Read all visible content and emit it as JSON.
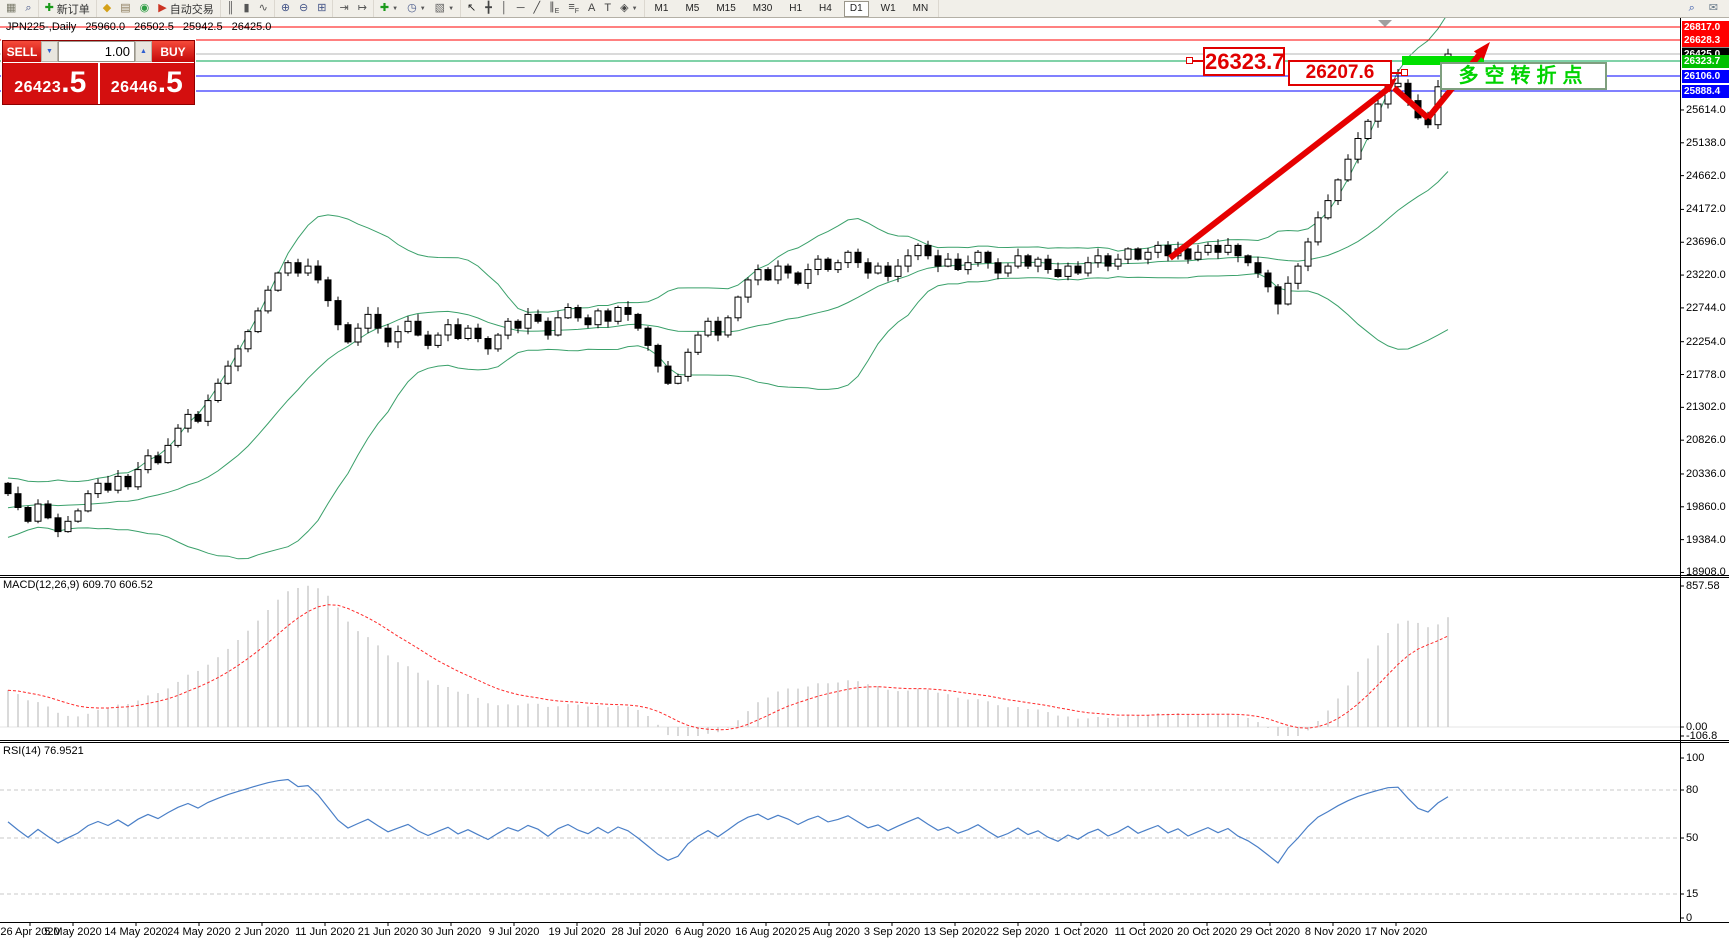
{
  "toolbar": {
    "groups": [
      {
        "items": [
          {
            "name": "chart-window-button",
            "glyph": "▦",
            "color": "#7a7a6a"
          },
          {
            "name": "zoom-preview-button",
            "glyph": "⌕",
            "color": "#445588"
          }
        ]
      },
      {
        "items": [
          {
            "name": "new-order-button",
            "glyph": "✚",
            "color": "#1a9a1a",
            "label": "新订单"
          }
        ]
      },
      {
        "items": [
          {
            "name": "metaeditor-button",
            "glyph": "◆",
            "color": "#d4a017"
          },
          {
            "name": "terminal-button",
            "glyph": "▤",
            "color": "#8a7a5a"
          },
          {
            "name": "signals-button",
            "glyph": "◉",
            "color": "#2f9e44"
          },
          {
            "name": "autotrading-button",
            "glyph": "▶",
            "color": "#cc3322",
            "label": "自动交易"
          }
        ]
      },
      {
        "items": [
          {
            "name": "bar-chart-button",
            "glyph": "║",
            "color": "#555555"
          },
          {
            "name": "candlestick-chart-button",
            "glyph": "▮",
            "color": "#555555"
          },
          {
            "name": "line-chart-button",
            "glyph": "∿",
            "color": "#555555"
          }
        ]
      },
      {
        "items": [
          {
            "name": "zoom-in-button",
            "glyph": "⊕",
            "color": "#445588"
          },
          {
            "name": "zoom-out-button",
            "glyph": "⊖",
            "color": "#445588"
          },
          {
            "name": "tile-windows-button",
            "glyph": "⊞",
            "color": "#445588"
          }
        ]
      },
      {
        "items": [
          {
            "name": "auto-scroll-button",
            "glyph": "⇥",
            "color": "#555555"
          },
          {
            "name": "chart-shift-button",
            "glyph": "↦",
            "color": "#555555"
          }
        ]
      },
      {
        "items": [
          {
            "name": "indicators-button",
            "glyph": "✚",
            "color": "#1a9a1a",
            "dropdown": true
          },
          {
            "name": "periods-button",
            "glyph": "◷",
            "color": "#445588",
            "dropdown": true
          },
          {
            "name": "templates-button",
            "glyph": "▧",
            "color": "#666666",
            "dropdown": true
          }
        ]
      },
      {
        "items": [
          {
            "name": "cursor-tool-button",
            "glyph": "↖",
            "color": "#222222"
          },
          {
            "name": "crosshair-tool-button",
            "glyph": "╋",
            "color": "#444444"
          },
          {
            "name": "vertical-line-tool-button",
            "glyph": "│",
            "color": "#444444"
          },
          {
            "name": "horizontal-line-tool-button",
            "glyph": "─",
            "color": "#444444"
          },
          {
            "name": "trendline-tool-button",
            "glyph": "╱",
            "color": "#444444"
          },
          {
            "name": "channel-tool-button",
            "glyph": "∥",
            "sub": "E",
            "color": "#444444"
          },
          {
            "name": "fibonacci-tool-button",
            "glyph": "≡",
            "sub": "F",
            "color": "#444444"
          },
          {
            "name": "text-tool-button",
            "glyph": "A",
            "color": "#444444"
          },
          {
            "name": "label-tool-button",
            "glyph": "T",
            "color": "#444444"
          },
          {
            "name": "arrows-tool-button",
            "glyph": "◈",
            "color": "#444444",
            "dropdown": true
          }
        ]
      }
    ],
    "timeframes": {
      "items": [
        "M1",
        "M5",
        "M15",
        "M30",
        "H1",
        "H4",
        "D1",
        "W1",
        "MN"
      ],
      "active": "D1"
    },
    "right_items": [
      {
        "name": "search-button",
        "glyph": "⌕",
        "color": "#3355aa"
      },
      {
        "name": "chat-button",
        "glyph": "✉",
        "color": "#667788"
      }
    ]
  },
  "chart_header": {
    "symbol": "JPN225-,Daily",
    "open": "25960.0",
    "high": "26502.5",
    "low": "25942.5",
    "close": "26425.0"
  },
  "trade_panel": {
    "sell_label": "SELL",
    "buy_label": "BUY",
    "volume": "1.00",
    "sell_price": {
      "main": "26423",
      "pips": ".5"
    },
    "buy_price": {
      "main": "26446",
      "pips": ".5"
    },
    "down_arrow": "▼",
    "up_arrow": "▲"
  },
  "annotations": {
    "resistance_label": "26323.7",
    "swing_label": "26207.6",
    "note": "多空转折点"
  },
  "panels": {
    "macd_label": "MACD(12,26,9) 609.70 606.52",
    "rsi_label": "RSI(14) 76.9521"
  },
  "axis": {
    "price_ticks": [
      "25614.0",
      "25138.0",
      "24662.0",
      "24172.0",
      "23696.0",
      "23220.0",
      "22744.0",
      "22254.0",
      "21778.0",
      "21302.0",
      "20826.0",
      "20336.0",
      "19860.0",
      "19384.0",
      "18908.0"
    ],
    "macd_ticks": [
      {
        "label": "857.58",
        "value": 857.58
      },
      {
        "label": "0.00",
        "value": 0
      },
      {
        "label": "-106.8",
        "value": -106.8
      }
    ],
    "rsi_ticks": [
      {
        "label": "100",
        "value": 100
      },
      {
        "label": "80",
        "value": 80
      },
      {
        "label": "50",
        "value": 50
      },
      {
        "label": "15",
        "value": 15
      },
      {
        "label": "0",
        "value": 0
      }
    ],
    "dates": [
      "26 Apr 2020",
      "5 May 2020",
      "14 May 2020",
      "24 May 2020",
      "2 Jun 2020",
      "11 Jun 2020",
      "21 Jun 2020",
      "30 Jun 2020",
      "9 Jul 2020",
      "19 Jul 2020",
      "28 Jul 2020",
      "6 Aug 2020",
      "16 Aug 2020",
      "25 Aug 2020",
      "3 Sep 2020",
      "13 Sep 2020",
      "22 Sep 2020",
      "1 Oct 2020",
      "11 Oct 2020",
      "20 Oct 2020",
      "29 Oct 2020",
      "8 Nov 2020",
      "17 Nov 2020"
    ]
  },
  "price_tags": [
    {
      "value": "26817.0",
      "price": 26817.0,
      "color": "#ff0000",
      "line": "#ff0000",
      "z": 3
    },
    {
      "value": "26628.3",
      "price": 26628.3,
      "color": "#ff0000",
      "line": "#ff0000",
      "z": 6
    },
    {
      "value": "26446.5",
      "price": 26446.5,
      "color": "#8a8a8a",
      "z": 4
    },
    {
      "value": "26425.0",
      "price": 26425.0,
      "color": "#000000",
      "line": "#b4b4b4",
      "z": 5
    },
    {
      "value": "26323.7",
      "price": 26323.7,
      "color": "#00c000",
      "line": "#00a651",
      "z": 7
    },
    {
      "value": "26106.0",
      "price": 26106.0,
      "color": "#0000ff",
      "line": "#0000ff",
      "z": 3
    },
    {
      "value": "25888.4",
      "price": 25888.4,
      "color": "#0000ff",
      "line": "#0000ff",
      "z": 3
    }
  ],
  "chart_data": {
    "type": "candlestick",
    "symbol": "JPN225-",
    "timeframe": "Daily",
    "title": "JPN225-,Daily 25960.0 26502.5 25942.5 26425.0",
    "price_axis_range": [
      18908.0,
      26817.0
    ],
    "grid": false,
    "warmup_closes": [
      19000,
      19200,
      18900,
      18650,
      18850,
      19100,
      19300,
      19500,
      19400,
      19600,
      19800,
      19700,
      19500,
      19700,
      19900,
      20000,
      19850,
      19950,
      20100,
      19950,
      19800,
      19900,
      20000,
      20100,
      19950,
      20200
    ],
    "closes": [
      20050,
      19850,
      19650,
      19900,
      19700,
      19500,
      19650,
      19800,
      20050,
      20200,
      20100,
      20300,
      20150,
      20400,
      20600,
      20500,
      20750,
      21000,
      21200,
      21100,
      21400,
      21650,
      21900,
      22150,
      22400,
      22700,
      23000,
      23250,
      23400,
      23250,
      23350,
      23150,
      22850,
      22500,
      22250,
      22450,
      22650,
      22450,
      22250,
      22400,
      22550,
      22350,
      22200,
      22350,
      22500,
      22300,
      22450,
      22300,
      22150,
      22350,
      22550,
      22450,
      22650,
      22550,
      22350,
      22600,
      22750,
      22600,
      22500,
      22700,
      22550,
      22750,
      22650,
      22450,
      22200,
      21900,
      21650,
      21750,
      22100,
      22350,
      22550,
      22350,
      22600,
      22900,
      23150,
      23300,
      23150,
      23350,
      23250,
      23100,
      23300,
      23450,
      23300,
      23400,
      23550,
      23400,
      23250,
      23350,
      23200,
      23350,
      23500,
      23650,
      23500,
      23350,
      23450,
      23300,
      23400,
      23550,
      23400,
      23250,
      23350,
      23500,
      23350,
      23450,
      23300,
      23200,
      23350,
      23250,
      23400,
      23500,
      23350,
      23450,
      23600,
      23450,
      23550,
      23650,
      23500,
      23600,
      23450,
      23550,
      23650,
      23550,
      23650,
      23500,
      23400,
      23250,
      23050,
      22800,
      23100,
      23350,
      23700,
      24050,
      24300,
      24600,
      24900,
      25200,
      25450,
      25700,
      25950,
      26000,
      25750,
      25500,
      25400,
      25950,
      26425
    ],
    "exceptions": {
      "127": {
        "l": 22650
      },
      "139": {
        "h": 26207.6
      },
      "144": {
        "o": 25960,
        "h": 26502.5,
        "l": 25942.5,
        "c": 26425
      }
    },
    "last_ohlc": {
      "open": 25960.0,
      "high": 26502.5,
      "low": 25942.5,
      "close": 26425.0
    },
    "indicators": {
      "bollinger": {
        "period": 20,
        "deviation": 2,
        "color": "#3aa06a"
      },
      "macd": {
        "fast": 12,
        "slow": 26,
        "signal": 9,
        "current": "609.70",
        "current_signal": "606.52",
        "histogram_color": "#c9c9c9",
        "signal_color": "#ff2a2a",
        "axis_max": 857.58,
        "axis_min": -106.8
      },
      "rsi": {
        "period": 14,
        "current": "76.9521",
        "color": "#4a7fc7",
        "levels": [
          80,
          50,
          15
        ],
        "axis": [
          0,
          100
        ]
      }
    },
    "levels": {
      "resistance_zone": 26323.7,
      "swing_high": 26207.6,
      "red_lines": [
        26817.0,
        26628.3
      ],
      "blue_lines": [
        26106.0,
        25888.4
      ],
      "green_line": 26323.7,
      "bid_line": 26425.0
    }
  }
}
